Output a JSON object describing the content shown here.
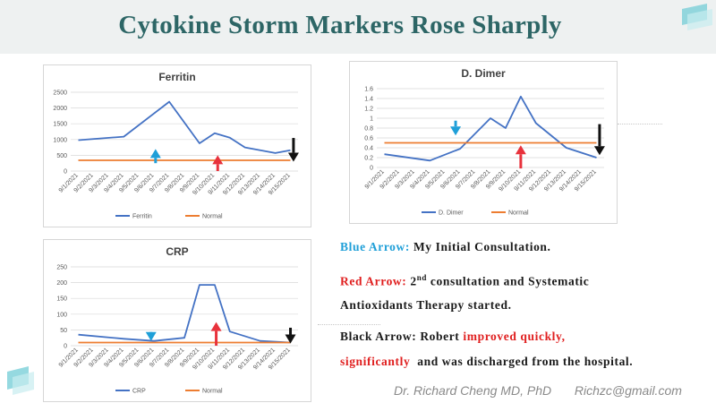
{
  "slide": {
    "title": "Cytokine Storm Markers Rose Sharply",
    "notes": {
      "blue_label": "Blue Arrow:",
      "blue_text": "My Initial Consultation.",
      "red_label": "Red Arrow:",
      "red_text_pre": "2",
      "red_sup": "nd",
      "red_text_line1": " consultation and Systematic",
      "red_text_line2": "Antioxidants Therapy started.",
      "black_label": "Black Arrow:",
      "black_text_pre": "Robert",
      "black_highlight_1": "improved quickly,",
      "black_highlight_2": "significantly",
      "black_text_post": "and was discharged from the hospital."
    },
    "footer": {
      "author": "Dr.  Richard Cheng MD, PhD",
      "email": "Richzc@gmail.com"
    },
    "colors": {
      "title": "#2d6666",
      "series": "#4472c4",
      "normal": "#ed7d31",
      "blue_arrow": "#1f9fd8",
      "red_arrow": "#e8323c",
      "black_arrow": "#111111"
    }
  },
  "chart_data": [
    {
      "id": "ferritin",
      "type": "line",
      "title": "Ferritin",
      "x": [
        "9/1/2021",
        "9/2/2021",
        "9/3/2021",
        "9/4/2021",
        "9/5/2021",
        "9/6/2021",
        "9/7/2021",
        "9/8/2021",
        "9/9/2021",
        "9/10/2021",
        "9/11/2021",
        "9/12/2021",
        "9/13/2021",
        "9/14/2021",
        "9/15/2021"
      ],
      "series": [
        {
          "name": "Ferritin",
          "points": [
            [
              0,
              980
            ],
            [
              3,
              1090
            ],
            [
              6,
              2200
            ],
            [
              8,
              880
            ],
            [
              9,
              1200
            ],
            [
              10,
              1060
            ],
            [
              11,
              750
            ],
            [
              13,
              570
            ],
            [
              14,
              660
            ]
          ]
        },
        {
          "name": "Normal",
          "points": [
            [
              0,
              340
            ],
            [
              14,
              340
            ]
          ]
        }
      ],
      "ylim": [
        0,
        2500
      ],
      "yticks": [
        "0",
        "500",
        "1000",
        "1500",
        "2000",
        "2500"
      ],
      "ytick_values": [
        0,
        500,
        1000,
        1500,
        2000,
        2500
      ],
      "arrows": [
        {
          "color": "blue",
          "direction": "up",
          "x": 5.1,
          "y_from": 250,
          "y_to": 700
        },
        {
          "color": "red",
          "direction": "up",
          "x": 9.2,
          "y_from": 0,
          "y_to": 500
        },
        {
          "color": "black",
          "direction": "down",
          "x": 14.2,
          "y_from": 1050,
          "y_to": 300
        }
      ],
      "legend": "bottom"
    },
    {
      "id": "ddimer",
      "type": "line",
      "title": "D. Dimer",
      "x": [
        "9/1/2021",
        "9/2/2021",
        "9/3/2021",
        "9/4/2021",
        "9/5/2021",
        "9/6/2021",
        "9/7/2021",
        "9/8/2021",
        "9/9/2021",
        "9/10/2021",
        "9/11/2021",
        "9/12/2021",
        "9/13/2021",
        "9/14/2021",
        "9/15/2021"
      ],
      "series": [
        {
          "name": "D. Dimer",
          "points": [
            [
              0,
              0.27
            ],
            [
              3,
              0.14
            ],
            [
              5,
              0.38
            ],
            [
              7,
              1.0
            ],
            [
              8,
              0.8
            ],
            [
              9,
              1.44
            ],
            [
              10,
              0.9
            ],
            [
              12,
              0.4
            ],
            [
              14,
              0.2
            ]
          ]
        },
        {
          "name": "Normal",
          "points": [
            [
              0,
              0.5
            ],
            [
              14,
              0.5
            ]
          ]
        }
      ],
      "ylim": [
        0,
        1.6
      ],
      "yticks": [
        "0",
        "0.2",
        "0.4",
        "0.6",
        "0.8",
        "1",
        "1.2",
        "1.4",
        "1.6"
      ],
      "ytick_values": [
        0,
        0.2,
        0.4,
        0.6,
        0.8,
        1,
        1.2,
        1.4,
        1.6
      ],
      "arrows": [
        {
          "color": "blue",
          "direction": "down",
          "x": 4.7,
          "y_from": 0.95,
          "y_to": 0.65
        },
        {
          "color": "red",
          "direction": "up",
          "x": 9.0,
          "y_from": -0.02,
          "y_to": 0.45
        },
        {
          "color": "black",
          "direction": "down",
          "x": 14.2,
          "y_from": 0.88,
          "y_to": 0.25
        }
      ],
      "legend": "bottom"
    },
    {
      "id": "crp",
      "type": "line",
      "title": "CRP",
      "x": [
        "9/1/2021",
        "9/2/2021",
        "9/3/2021",
        "9/4/2021",
        "9/5/2021",
        "9/6/2021",
        "9/7/2021",
        "9/8/2021",
        "9/9/2021",
        "9/10/2021",
        "9/11/2021",
        "9/12/2021",
        "9/13/2021",
        "9/14/2021",
        "9/15/2021"
      ],
      "series": [
        {
          "name": "CRP",
          "points": [
            [
              0,
              35
            ],
            [
              3,
              22
            ],
            [
              5,
              15
            ],
            [
              7,
              25
            ],
            [
              8,
              193
            ],
            [
              9,
              193
            ],
            [
              10,
              45
            ],
            [
              12,
              15
            ],
            [
              14,
              10
            ]
          ]
        },
        {
          "name": "Normal",
          "points": [
            [
              0,
              10
            ],
            [
              14,
              10
            ]
          ]
        }
      ],
      "ylim": [
        0,
        250
      ],
      "yticks": [
        "0",
        "50",
        "100",
        "150",
        "200",
        "250"
      ],
      "ytick_values": [
        0,
        50,
        100,
        150,
        200,
        250
      ],
      "arrows": [
        {
          "color": "blue",
          "direction": "down",
          "x": 4.8,
          "y_from": 40,
          "y_to": 15
        },
        {
          "color": "red",
          "direction": "up",
          "x": 9.1,
          "y_from": 0,
          "y_to": 75
        },
        {
          "color": "black",
          "direction": "down",
          "x": 14.0,
          "y_from": 57,
          "y_to": 7
        }
      ],
      "legend": "bottom"
    }
  ]
}
